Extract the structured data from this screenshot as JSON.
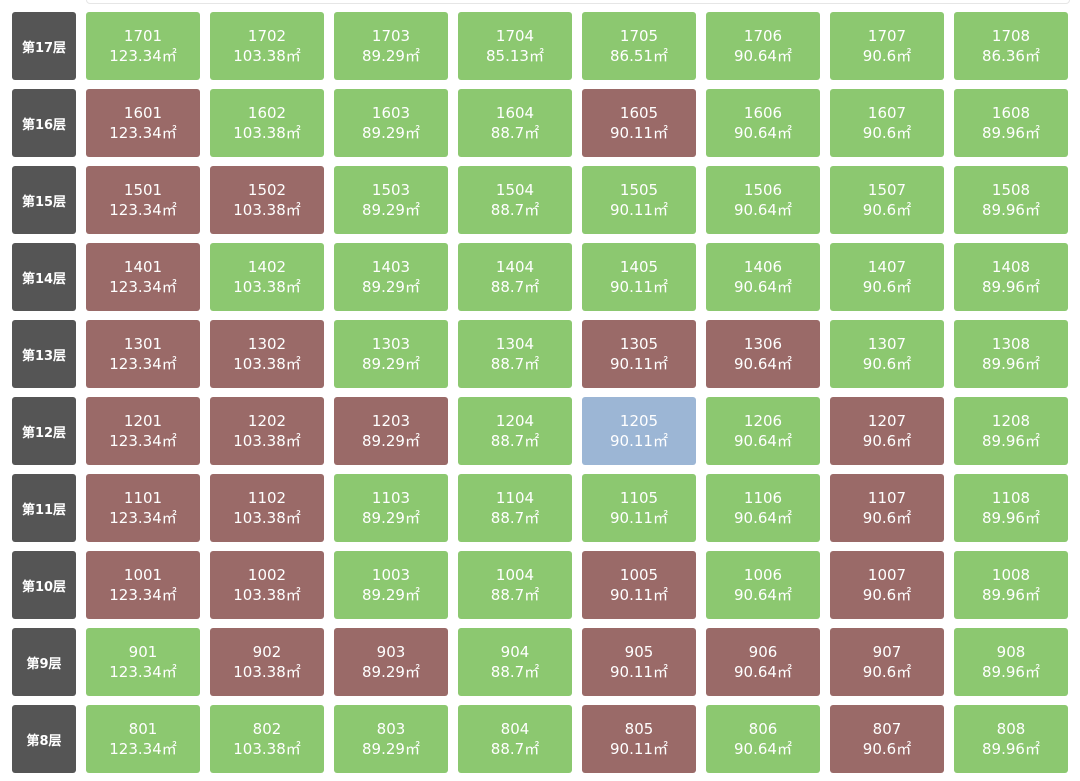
{
  "floors": [
    {
      "label": "第17层",
      "units": [
        {
          "number": "1701",
          "area": "123.34㎡",
          "color": "#8cc870"
        },
        {
          "number": "1702",
          "area": "103.38㎡",
          "color": "#8cc870"
        },
        {
          "number": "1703",
          "area": "89.29㎡",
          "color": "#8cc870"
        },
        {
          "number": "1704",
          "area": "85.13㎡",
          "color": "#8cc870"
        },
        {
          "number": "1705",
          "area": "86.51㎡",
          "color": "#8cc870"
        },
        {
          "number": "1706",
          "area": "90.64㎡",
          "color": "#8cc870"
        },
        {
          "number": "1707",
          "area": "90.6㎡",
          "color": "#8cc870"
        },
        {
          "number": "1708",
          "area": "86.36㎡",
          "color": "#8cc870"
        }
      ]
    },
    {
      "label": "第16层",
      "units": [
        {
          "number": "1601",
          "area": "123.34㎡",
          "color": "#9a6a68"
        },
        {
          "number": "1602",
          "area": "103.38㎡",
          "color": "#8cc870"
        },
        {
          "number": "1603",
          "area": "89.29㎡",
          "color": "#8cc870"
        },
        {
          "number": "1604",
          "area": "88.7㎡",
          "color": "#8cc870"
        },
        {
          "number": "1605",
          "area": "90.11㎡",
          "color": "#9a6a68"
        },
        {
          "number": "1606",
          "area": "90.64㎡",
          "color": "#8cc870"
        },
        {
          "number": "1607",
          "area": "90.6㎡",
          "color": "#8cc870"
        },
        {
          "number": "1608",
          "area": "89.96㎡",
          "color": "#8cc870"
        }
      ]
    },
    {
      "label": "第15层",
      "units": [
        {
          "number": "1501",
          "area": "123.34㎡",
          "color": "#9a6a68"
        },
        {
          "number": "1502",
          "area": "103.38㎡",
          "color": "#9a6a68"
        },
        {
          "number": "1503",
          "area": "89.29㎡",
          "color": "#8cc870"
        },
        {
          "number": "1504",
          "area": "88.7㎡",
          "color": "#8cc870"
        },
        {
          "number": "1505",
          "area": "90.11㎡",
          "color": "#8cc870"
        },
        {
          "number": "1506",
          "area": "90.64㎡",
          "color": "#8cc870"
        },
        {
          "number": "1507",
          "area": "90.6㎡",
          "color": "#8cc870"
        },
        {
          "number": "1508",
          "area": "89.96㎡",
          "color": "#8cc870"
        }
      ]
    },
    {
      "label": "第14层",
      "units": [
        {
          "number": "1401",
          "area": "123.34㎡",
          "color": "#9a6a68"
        },
        {
          "number": "1402",
          "area": "103.38㎡",
          "color": "#8cc870"
        },
        {
          "number": "1403",
          "area": "89.29㎡",
          "color": "#8cc870"
        },
        {
          "number": "1404",
          "area": "88.7㎡",
          "color": "#8cc870"
        },
        {
          "number": "1405",
          "area": "90.11㎡",
          "color": "#8cc870"
        },
        {
          "number": "1406",
          "area": "90.64㎡",
          "color": "#8cc870"
        },
        {
          "number": "1407",
          "area": "90.6㎡",
          "color": "#8cc870"
        },
        {
          "number": "1408",
          "area": "89.96㎡",
          "color": "#8cc870"
        }
      ]
    },
    {
      "label": "第13层",
      "units": [
        {
          "number": "1301",
          "area": "123.34㎡",
          "color": "#9a6a68"
        },
        {
          "number": "1302",
          "area": "103.38㎡",
          "color": "#9a6a68"
        },
        {
          "number": "1303",
          "area": "89.29㎡",
          "color": "#8cc870"
        },
        {
          "number": "1304",
          "area": "88.7㎡",
          "color": "#8cc870"
        },
        {
          "number": "1305",
          "area": "90.11㎡",
          "color": "#9a6a68"
        },
        {
          "number": "1306",
          "area": "90.64㎡",
          "color": "#9a6a68"
        },
        {
          "number": "1307",
          "area": "90.6㎡",
          "color": "#8cc870"
        },
        {
          "number": "1308",
          "area": "89.96㎡",
          "color": "#8cc870"
        }
      ]
    },
    {
      "label": "第12层",
      "units": [
        {
          "number": "1201",
          "area": "123.34㎡",
          "color": "#9a6a68"
        },
        {
          "number": "1202",
          "area": "103.38㎡",
          "color": "#9a6a68"
        },
        {
          "number": "1203",
          "area": "89.29㎡",
          "color": "#9a6a68"
        },
        {
          "number": "1204",
          "area": "88.7㎡",
          "color": "#8cc870"
        },
        {
          "number": "1205",
          "area": "90.11㎡",
          "color": "#9cb6d5"
        },
        {
          "number": "1206",
          "area": "90.64㎡",
          "color": "#8cc870"
        },
        {
          "number": "1207",
          "area": "90.6㎡",
          "color": "#9a6a68"
        },
        {
          "number": "1208",
          "area": "89.96㎡",
          "color": "#8cc870"
        }
      ]
    },
    {
      "label": "第11层",
      "units": [
        {
          "number": "1101",
          "area": "123.34㎡",
          "color": "#9a6a68"
        },
        {
          "number": "1102",
          "area": "103.38㎡",
          "color": "#9a6a68"
        },
        {
          "number": "1103",
          "area": "89.29㎡",
          "color": "#8cc870"
        },
        {
          "number": "1104",
          "area": "88.7㎡",
          "color": "#8cc870"
        },
        {
          "number": "1105",
          "area": "90.11㎡",
          "color": "#8cc870"
        },
        {
          "number": "1106",
          "area": "90.64㎡",
          "color": "#8cc870"
        },
        {
          "number": "1107",
          "area": "90.6㎡",
          "color": "#9a6a68"
        },
        {
          "number": "1108",
          "area": "89.96㎡",
          "color": "#8cc870"
        }
      ]
    },
    {
      "label": "第10层",
      "units": [
        {
          "number": "1001",
          "area": "123.34㎡",
          "color": "#9a6a68"
        },
        {
          "number": "1002",
          "area": "103.38㎡",
          "color": "#9a6a68"
        },
        {
          "number": "1003",
          "area": "89.29㎡",
          "color": "#8cc870"
        },
        {
          "number": "1004",
          "area": "88.7㎡",
          "color": "#8cc870"
        },
        {
          "number": "1005",
          "area": "90.11㎡",
          "color": "#9a6a68"
        },
        {
          "number": "1006",
          "area": "90.64㎡",
          "color": "#8cc870"
        },
        {
          "number": "1007",
          "area": "90.6㎡",
          "color": "#9a6a68"
        },
        {
          "number": "1008",
          "area": "89.96㎡",
          "color": "#8cc870"
        }
      ]
    },
    {
      "label": "第9层",
      "units": [
        {
          "number": "901",
          "area": "123.34㎡",
          "color": "#8cc870"
        },
        {
          "number": "902",
          "area": "103.38㎡",
          "color": "#9a6a68"
        },
        {
          "number": "903",
          "area": "89.29㎡",
          "color": "#9a6a68"
        },
        {
          "number": "904",
          "area": "88.7㎡",
          "color": "#8cc870"
        },
        {
          "number": "905",
          "area": "90.11㎡",
          "color": "#9a6a68"
        },
        {
          "number": "906",
          "area": "90.64㎡",
          "color": "#9a6a68"
        },
        {
          "number": "907",
          "area": "90.6㎡",
          "color": "#9a6a68"
        },
        {
          "number": "908",
          "area": "89.96㎡",
          "color": "#8cc870"
        }
      ]
    },
    {
      "label": "第8层",
      "units": [
        {
          "number": "801",
          "area": "123.34㎡",
          "color": "#8cc870"
        },
        {
          "number": "802",
          "area": "103.38㎡",
          "color": "#8cc870"
        },
        {
          "number": "803",
          "area": "89.29㎡",
          "color": "#8cc870"
        },
        {
          "number": "804",
          "area": "88.7㎡",
          "color": "#8cc870"
        },
        {
          "number": "805",
          "area": "90.11㎡",
          "color": "#9a6a68"
        },
        {
          "number": "806",
          "area": "90.64㎡",
          "color": "#8cc870"
        },
        {
          "number": "807",
          "area": "90.6㎡",
          "color": "#9a6a68"
        },
        {
          "number": "808",
          "area": "89.96㎡",
          "color": "#8cc870"
        }
      ]
    }
  ]
}
